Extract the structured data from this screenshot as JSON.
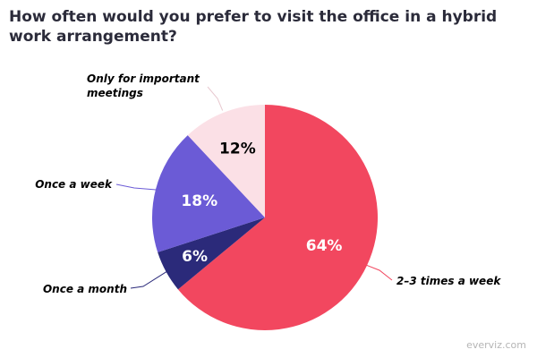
{
  "chart_data": {
    "type": "pie",
    "title": "How often would you prefer to visit the office in a hybrid work arrangement?",
    "slices": [
      {
        "label": "2–3 times a week",
        "value": 64,
        "value_label": "64%",
        "color": "#f2475f",
        "text_color": "#ffffff",
        "leader_color": "#f2475f",
        "label_lines": [
          "2–3 times a week"
        ]
      },
      {
        "label": "Once a month",
        "value": 6,
        "value_label": "6%",
        "color": "#2b2a7a",
        "text_color": "#ffffff",
        "leader_color": "#2b2a7a",
        "label_lines": [
          "Once a month"
        ]
      },
      {
        "label": "Once a week",
        "value": 18,
        "value_label": "18%",
        "color": "#6b5bd6",
        "text_color": "#ffffff",
        "leader_color": "#6b5bd6",
        "label_lines": [
          "Once a week"
        ]
      },
      {
        "label": "Only for important meetings",
        "value": 12,
        "value_label": "12%",
        "color": "#fbe0e6",
        "text_color": "#000000",
        "leader_color": "#e8c9d0",
        "label_lines": [
          "Only for important",
          "meetings"
        ]
      }
    ],
    "legend": "none"
  },
  "watermark": "everviz.com"
}
